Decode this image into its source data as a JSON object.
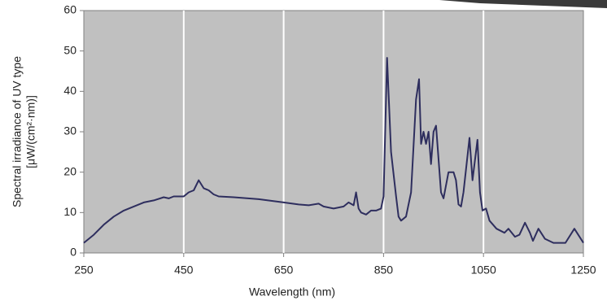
{
  "chart_data": {
    "type": "line",
    "xlabel": "Wavelength (nm)",
    "ylabel": [
      "Spectral irradiance of UV type",
      "[μW/(cm²·nm)]"
    ],
    "color": "#2e2e5e",
    "background": "#c0c0c0",
    "grid": "x",
    "xlim": [
      250,
      1250
    ],
    "xticks": [
      250,
      450,
      650,
      850,
      1050,
      1250
    ],
    "ylim": [
      0,
      60
    ],
    "yticks": [
      0,
      10,
      20,
      30,
      40,
      50,
      60
    ],
    "x": [
      250,
      270,
      290,
      310,
      330,
      350,
      370,
      390,
      410,
      420,
      430,
      450,
      460,
      470,
      480,
      490,
      500,
      510,
      520,
      550,
      600,
      650,
      680,
      700,
      720,
      730,
      750,
      770,
      780,
      790,
      795,
      800,
      805,
      815,
      825,
      835,
      845,
      850,
      857,
      865,
      875,
      880,
      885,
      895,
      905,
      915,
      921,
      925,
      930,
      935,
      940,
      945,
      950,
      955,
      965,
      970,
      980,
      990,
      995,
      1000,
      1005,
      1010,
      1022,
      1028,
      1038,
      1043,
      1048,
      1055,
      1062,
      1076,
      1092,
      1100,
      1113,
      1122,
      1133,
      1143,
      1149,
      1160,
      1173,
      1190,
      1214,
      1232,
      1250
    ],
    "values": [
      2.5,
      4.5,
      7,
      9,
      10.5,
      11.5,
      12.5,
      13,
      13.8,
      13.5,
      14,
      14,
      15,
      15.5,
      18,
      16,
      15.5,
      14.5,
      14,
      13.8,
      13.3,
      12.5,
      12,
      11.8,
      12.2,
      11.5,
      11,
      11.5,
      12.5,
      11.8,
      15,
      11,
      10,
      9.5,
      10.5,
      10.5,
      11,
      14,
      48.3,
      25,
      14,
      9,
      8,
      9,
      15,
      38,
      43,
      27,
      30,
      27,
      30,
      22,
      30,
      31.5,
      15,
      13.5,
      20,
      20,
      18,
      12,
      11.5,
      15,
      28.5,
      18,
      28,
      15,
      10.5,
      11,
      8,
      6,
      5,
      6,
      4,
      4.5,
      7.5,
      5,
      3,
      6,
      3.5,
      2.5,
      2.5,
      6,
      2.5
    ]
  }
}
